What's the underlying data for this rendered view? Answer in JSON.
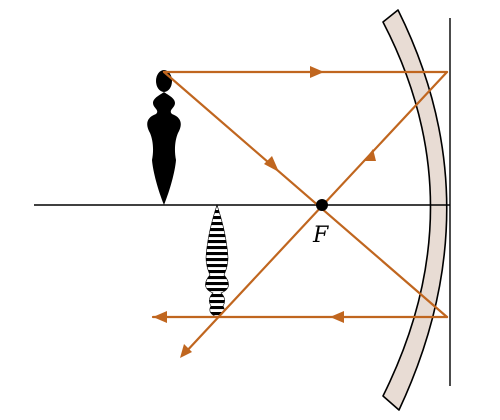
{
  "diagram": {
    "focal_point_label": "F",
    "colors": {
      "ray": "#c0661f",
      "mirror_fill": "#e8dcd4",
      "mirror_stroke": "#000000",
      "axis": "#000000",
      "object": "#000000",
      "image_stripes": "#000000"
    },
    "elements": {
      "mirror": "concave-mirror",
      "object": "upright-vase-object",
      "image": "inverted-striped-image",
      "focal_point": "focal-point-dot"
    }
  }
}
